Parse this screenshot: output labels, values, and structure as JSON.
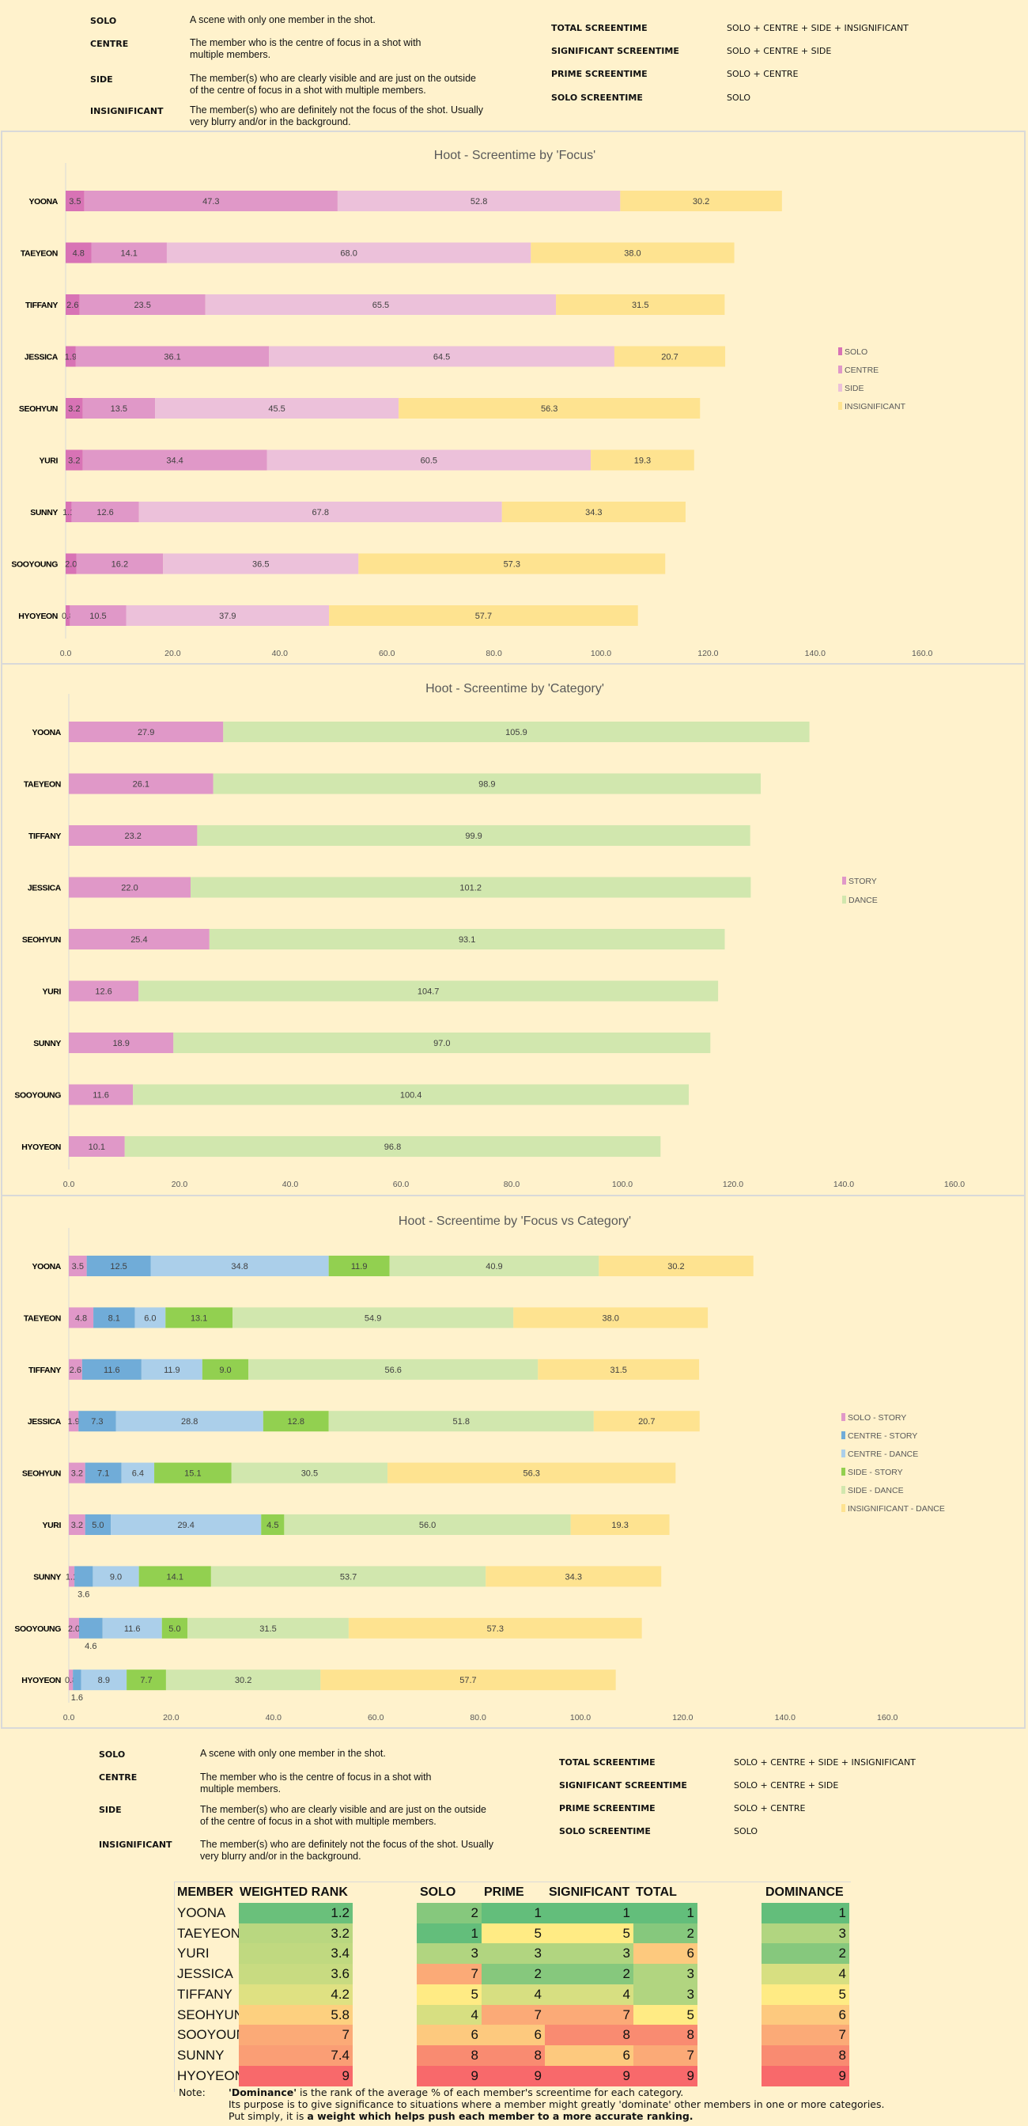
{
  "definitions_top": {
    "terms": [
      {
        "term": "SOLO",
        "desc": "A scene with only one member in the shot."
      },
      {
        "term": "CENTRE",
        "desc": "The member who is the centre of focus in a shot with\nmultiple members."
      },
      {
        "term": "SIDE",
        "desc": "The member(s) who are clearly visible and are just on the outside\nof the centre of focus in a shot with multiple members."
      },
      {
        "term": "INSIGNIFICANT",
        "desc": "The member(s) who are definitely not the focus of the shot.  Usually\nvery blurry and/or in the background."
      }
    ],
    "formulas": [
      {
        "term": "TOTAL SCREENTIME",
        "desc": "SOLO + CENTRE + SIDE + INSIGNIFICANT"
      },
      {
        "term": "SIGNIFICANT SCREENTIME",
        "desc": "SOLO + CENTRE + SIDE"
      },
      {
        "term": "PRIME SCREENTIME",
        "desc": "SOLO + CENTRE"
      },
      {
        "term": "SOLO SCREENTIME",
        "desc": "SOLO"
      }
    ]
  },
  "chart_data": [
    {
      "type": "bar",
      "orientation": "horizontal",
      "stacked": true,
      "title": "Hoot - Screentime by 'Focus'",
      "categories": [
        "YOONA",
        "TAEYEON",
        "TIFFANY",
        "JESSICA",
        "SEOHYUN",
        "YURI",
        "SUNNY",
        "SOOYOUNG",
        "HYOYEON"
      ],
      "xlim": [
        0,
        160
      ],
      "xticks": [
        "0.0",
        "20.0",
        "40.0",
        "60.0",
        "80.0",
        "100.0",
        "120.0",
        "140.0",
        "160.0"
      ],
      "grid": false,
      "legend": "right",
      "series": [
        {
          "name": "SOLO",
          "color": "#d873b5",
          "values": [
            3.5,
            4.8,
            2.6,
            1.9,
            3.2,
            3.2,
            1.1,
            2.0,
            0.8
          ]
        },
        {
          "name": "CENTRE",
          "color": "#e098c8",
          "values": [
            47.3,
            14.1,
            23.5,
            36.1,
            13.5,
            34.4,
            12.6,
            16.2,
            10.5
          ]
        },
        {
          "name": "SIDE",
          "color": "#ecc1da",
          "values": [
            52.8,
            68.0,
            65.5,
            64.5,
            45.5,
            60.5,
            67.8,
            36.5,
            37.9
          ]
        },
        {
          "name": "INSIGNIFICANT",
          "color": "#fee390",
          "values": [
            30.2,
            38.0,
            31.5,
            20.7,
            56.3,
            19.3,
            34.3,
            57.3,
            57.7
          ]
        }
      ]
    },
    {
      "type": "bar",
      "orientation": "horizontal",
      "stacked": true,
      "title": "Hoot - Screentime by 'Category'",
      "categories": [
        "YOONA",
        "TAEYEON",
        "TIFFANY",
        "JESSICA",
        "SEOHYUN",
        "YURI",
        "SUNNY",
        "SOOYOUNG",
        "HYOYEON"
      ],
      "xlim": [
        0,
        160
      ],
      "xticks": [
        "0.0",
        "20.0",
        "40.0",
        "60.0",
        "80.0",
        "100.0",
        "120.0",
        "140.0",
        "160.0"
      ],
      "grid": false,
      "legend": "right",
      "series": [
        {
          "name": "STORY",
          "color": "#e098c8",
          "values": [
            27.9,
            26.1,
            23.2,
            22.0,
            25.4,
            12.6,
            18.9,
            11.6,
            10.1
          ]
        },
        {
          "name": "DANCE",
          "color": "#d1e7ae",
          "values": [
            105.9,
            98.9,
            99.9,
            101.2,
            93.1,
            104.7,
            97.0,
            100.4,
            96.8
          ]
        }
      ]
    },
    {
      "type": "bar",
      "orientation": "horizontal",
      "stacked": true,
      "title": "Hoot - Screentime by 'Focus vs Category'",
      "categories": [
        "YOONA",
        "TAEYEON",
        "TIFFANY",
        "JESSICA",
        "SEOHYUN",
        "YURI",
        "SUNNY",
        "SOOYOUNG",
        "HYOYEON"
      ],
      "xlim": [
        0,
        160
      ],
      "xticks": [
        "0.0",
        "20.0",
        "40.0",
        "60.0",
        "80.0",
        "100.0",
        "120.0",
        "140.0",
        "160.0"
      ],
      "grid": false,
      "legend": "right",
      "series": [
        {
          "name": "SOLO - STORY",
          "color": "#e098c8",
          "values": [
            3.5,
            4.8,
            2.6,
            1.9,
            3.2,
            3.2,
            1.1,
            2.0,
            0.8
          ]
        },
        {
          "name": "CENTRE - STORY",
          "color": "#70acd8",
          "values": [
            12.5,
            8.1,
            11.6,
            7.3,
            7.1,
            5.0,
            3.6,
            4.6,
            1.6
          ]
        },
        {
          "name": "CENTRE - DANCE",
          "color": "#abcfea",
          "values": [
            34.8,
            6.0,
            11.9,
            28.8,
            6.4,
            29.4,
            9.0,
            11.6,
            8.9
          ]
        },
        {
          "name": "SIDE - STORY",
          "color": "#92d050",
          "values": [
            11.9,
            13.1,
            9.0,
            12.8,
            15.1,
            4.5,
            14.1,
            5.0,
            7.7
          ]
        },
        {
          "name": "SIDE - DANCE",
          "color": "#d1e7ae",
          "values": [
            40.9,
            54.9,
            56.6,
            51.8,
            30.5,
            56.0,
            53.7,
            31.5,
            30.2
          ]
        },
        {
          "name": "INSIGNIFICANT - DANCE",
          "color": "#fee390",
          "values": [
            30.2,
            38.0,
            31.5,
            20.7,
            56.3,
            19.3,
            34.3,
            57.3,
            57.7
          ]
        }
      ]
    }
  ],
  "definitions_bottom": {
    "terms": [
      {
        "term": "SOLO",
        "desc": "A scene with only one member in the shot."
      },
      {
        "term": "CENTRE",
        "desc": "The member who is the centre of focus in a shot with\nmultiple members."
      },
      {
        "term": "SIDE",
        "desc": "The member(s) who are clearly visible and are just on the outside\nof the centre of focus in a shot with multiple members."
      },
      {
        "term": "INSIGNIFICANT",
        "desc": "The member(s) who are definitely not the focus of the shot.  Usually\nvery blurry and/or in the background."
      }
    ],
    "formulas": [
      {
        "term": "TOTAL SCREENTIME",
        "desc": "SOLO + CENTRE + SIDE + INSIGNIFICANT"
      },
      {
        "term": "SIGNIFICANT SCREENTIME",
        "desc": "SOLO + CENTRE + SIDE"
      },
      {
        "term": "PRIME SCREENTIME",
        "desc": "SOLO + CENTRE"
      },
      {
        "term": "SOLO SCREENTIME",
        "desc": "SOLO"
      }
    ]
  },
  "ranking_table": {
    "headers": {
      "member": "MEMBER",
      "weighted_rank": "WEIGHTED RANK",
      "solo": "SOLO",
      "prime": "PRIME",
      "significant": "SIGNIFICANT",
      "total": "TOTAL",
      "dominance": "DOMINANCE"
    },
    "rows": [
      {
        "member": "YOONA",
        "weighted_rank": "1.2",
        "solo": "2",
        "prime": "1",
        "significant": "1",
        "total": "1",
        "dominance": "1"
      },
      {
        "member": "TAEYEON",
        "weighted_rank": "3.2",
        "solo": "1",
        "prime": "5",
        "significant": "5",
        "total": "2",
        "dominance": "3"
      },
      {
        "member": "YURI",
        "weighted_rank": "3.4",
        "solo": "3",
        "prime": "3",
        "significant": "3",
        "total": "6",
        "dominance": "2"
      },
      {
        "member": "JESSICA",
        "weighted_rank": "3.6",
        "solo": "7",
        "prime": "2",
        "significant": "2",
        "total": "3",
        "dominance": "4"
      },
      {
        "member": "TIFFANY",
        "weighted_rank": "4.2",
        "solo": "5",
        "prime": "4",
        "significant": "4",
        "total": "3",
        "dominance": "5"
      },
      {
        "member": "SEOHYUN",
        "weighted_rank": "5.8",
        "solo": "4",
        "prime": "7",
        "significant": "7",
        "total": "5",
        "dominance": "6"
      },
      {
        "member": "SOOYOUN",
        "weighted_rank": "7",
        "solo": "6",
        "prime": "6",
        "significant": "8",
        "total": "8",
        "dominance": "7"
      },
      {
        "member": "SUNNY",
        "weighted_rank": "7.4",
        "solo": "8",
        "prime": "8",
        "significant": "6",
        "total": "7",
        "dominance": "8"
      },
      {
        "member": "HYOYEON",
        "weighted_rank": "9",
        "solo": "9",
        "prime": "9",
        "significant": "9",
        "total": "9",
        "dominance": "9"
      }
    ],
    "scale_colors": [
      "#63be7b",
      "#86c87d",
      "#b1d580",
      "#d7df81",
      "#ffeb84",
      "#fdc97e",
      "#fbaa77",
      "#f98b71",
      "#f8696b"
    ]
  },
  "note": {
    "label": "Note:",
    "line1_bold": "'Dominance'",
    "line1": " is the rank of the average % of each member's screentime for each category.",
    "line2": "Its purpose is to give significance to situations where a member might greatly 'dominate' other members in one or more categories.",
    "line3": "Put simply, it is ",
    "line3_bold": "a weight which helps push each member to a more accurate ranking."
  }
}
